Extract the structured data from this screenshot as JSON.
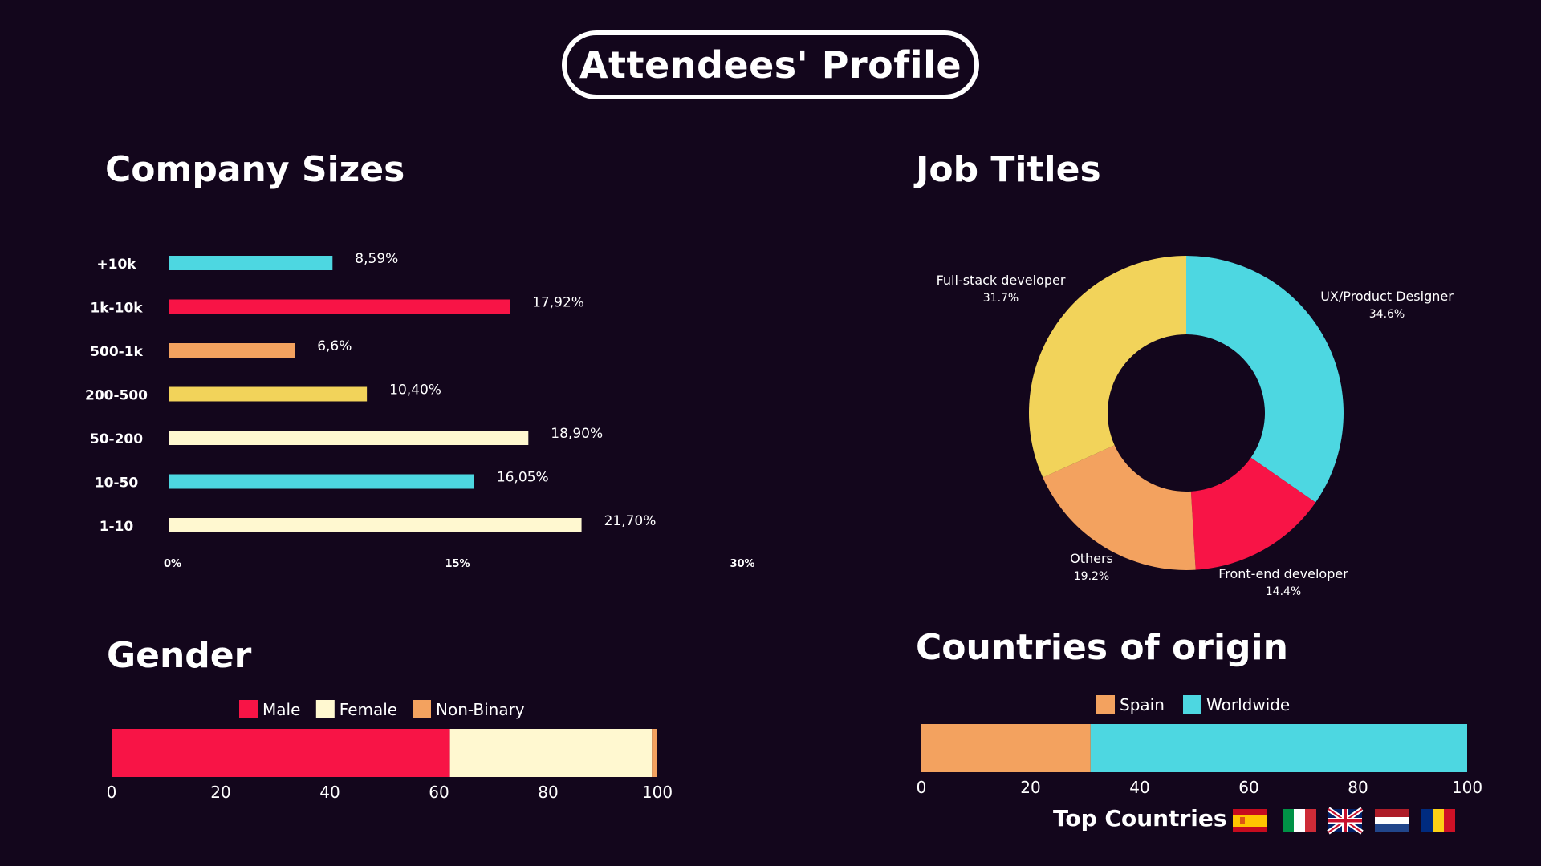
{
  "page_title": "Attendees' Profile",
  "colors": {
    "background": "#13061c",
    "cyan": "#4dd7e1",
    "red": "#f81446",
    "orange": "#f3a25f",
    "yellow": "#f2d35a",
    "cream": "#fff8d0"
  },
  "chart_data": [
    {
      "id": "company_sizes",
      "type": "bar",
      "orientation": "horizontal",
      "title": "Company Sizes",
      "categories": [
        "+10k",
        "1k-10k",
        "500-1k",
        "200-500",
        "50-200",
        "10-50",
        "1-10"
      ],
      "values": [
        8.59,
        17.92,
        6.6,
        10.4,
        18.9,
        16.05,
        21.7
      ],
      "data_labels": [
        "8,59%",
        "17,92%",
        "6,6%",
        "10,40%",
        "18,90%",
        "16,05%",
        "21,70%"
      ],
      "bar_colors": [
        "#4dd7e1",
        "#f81446",
        "#f3a25f",
        "#f2d35a",
        "#fff8d0",
        "#4dd7e1",
        "#fff8d0"
      ],
      "xlim": [
        0,
        30
      ],
      "xticks": [
        0,
        15,
        30
      ],
      "xtick_labels": [
        "0%",
        "15%",
        "30%"
      ],
      "grid": false
    },
    {
      "id": "job_titles",
      "type": "pie",
      "donut": true,
      "title": "Job Titles",
      "start_angle_deg": 0,
      "slices": [
        {
          "label": "UX/Product Designer",
          "value": 34.6,
          "value_label": "34.6%",
          "color": "#4dd7e1"
        },
        {
          "label": "Front-end developer",
          "value": 14.4,
          "value_label": "14.4%",
          "color": "#f81446"
        },
        {
          "label": "Others",
          "value": 19.2,
          "value_label": "19.2%",
          "color": "#f3a25f"
        },
        {
          "label": "Full-stack developer",
          "value": 31.7,
          "value_label": "31.7%",
          "color": "#f2d35a"
        }
      ]
    },
    {
      "id": "gender",
      "type": "bar",
      "stacked": true,
      "orientation": "horizontal",
      "title": "Gender",
      "series": [
        {
          "name": "Male",
          "value": 62,
          "color": "#f81446"
        },
        {
          "name": "Female",
          "value": 37,
          "color": "#fff8d0"
        },
        {
          "name": "Non-Binary",
          "value": 1,
          "color": "#f3a25f"
        }
      ],
      "xlim": [
        0,
        100
      ],
      "xticks": [
        0,
        20,
        40,
        60,
        80,
        100
      ],
      "legend": "top-center",
      "grid": false
    },
    {
      "id": "countries",
      "type": "bar",
      "stacked": true,
      "orientation": "horizontal",
      "title": "Countries of origin",
      "series": [
        {
          "name": "Spain",
          "value": 31,
          "color": "#f3a25f"
        },
        {
          "name": "Worldwide",
          "value": 69,
          "color": "#4dd7e1"
        }
      ],
      "xlim": [
        0,
        100
      ],
      "xticks": [
        0,
        20,
        40,
        60,
        80,
        100
      ],
      "legend": "top-center",
      "grid": false
    }
  ],
  "top_countries": {
    "label": "Top Countries",
    "flags": [
      {
        "name": "spain-flag-icon"
      },
      {
        "name": "italy-flag-icon"
      },
      {
        "name": "uk-flag-icon"
      },
      {
        "name": "netherlands-flag-icon"
      },
      {
        "name": "romania-flag-icon"
      }
    ]
  }
}
